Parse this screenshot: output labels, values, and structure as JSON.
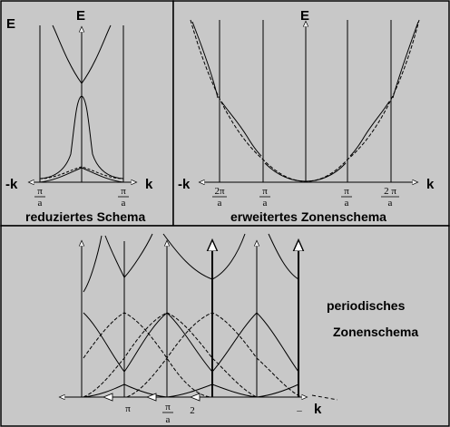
{
  "panels": {
    "reduced": {
      "caption": "reduziertes Schema",
      "e_label_left": "E",
      "e_label_axis": "E",
      "neg_k_label": "-k",
      "k_label": "k",
      "tick_left": {
        "num": "π",
        "den": "a"
      },
      "tick_right": {
        "num": "π",
        "den": "a"
      }
    },
    "extended": {
      "caption": "erweitertes Zonenschema",
      "e_label_axis": "E",
      "neg_k_label": "-k",
      "k_label": "k",
      "ticks": [
        {
          "num": "2π",
          "den": "a"
        },
        {
          "num": "π",
          "den": "a"
        },
        {
          "num": "π",
          "den": "a"
        },
        {
          "num": "2 π",
          "den": "a"
        }
      ]
    },
    "periodic": {
      "caption_line1": "periodisches",
      "caption_line2": "Zonenschema",
      "k_label": "k",
      "tick_pi": "π",
      "tick_frac": {
        "num": "π",
        "den": "a"
      },
      "tick_two": "2",
      "tick_dash": "_"
    }
  },
  "colors": {
    "panel_fill": "#c8c8c8",
    "line": "#000000",
    "border": "#000000"
  }
}
